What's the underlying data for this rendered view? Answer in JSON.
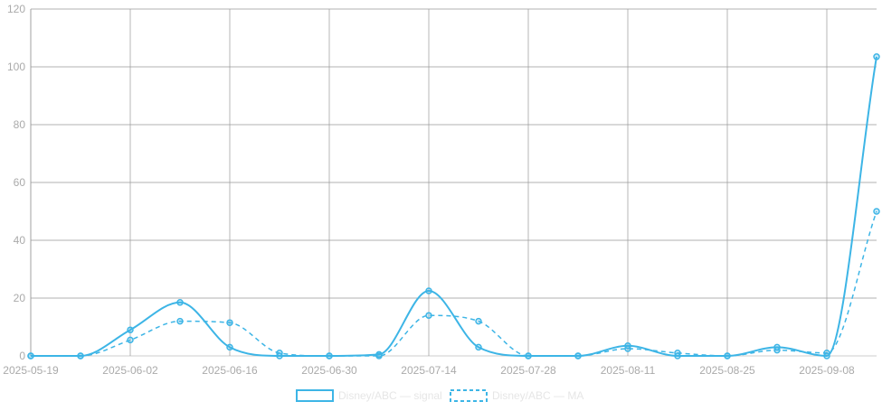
{
  "chart_data": {
    "type": "line",
    "x": [
      "2025-05-19",
      "2025-05-26",
      "2025-06-02",
      "2025-06-09",
      "2025-06-16",
      "2025-06-23",
      "2025-06-30",
      "2025-07-07",
      "2025-07-14",
      "2025-07-21",
      "2025-07-28",
      "2025-08-04",
      "2025-08-11",
      "2025-08-18",
      "2025-08-25",
      "2025-09-01",
      "2025-09-08",
      "2025-09-15"
    ],
    "x_tick_labels": [
      "2025-05-19",
      "2025-06-02",
      "2025-06-16",
      "2025-06-30",
      "2025-07-14",
      "2025-07-28",
      "2025-08-11",
      "2025-08-25",
      "2025-09-08"
    ],
    "ylim": [
      0,
      120
    ],
    "y_ticks": [
      0,
      20,
      40,
      60,
      80,
      100,
      120
    ],
    "grid": true,
    "legend_position": "bottom",
    "series": [
      {
        "name": "Disney/ABC — signal",
        "style": "solid",
        "color": "#3db5e6",
        "values": [
          0,
          0,
          9,
          18.5,
          3,
          0,
          0,
          0.5,
          22.5,
          3,
          0,
          0,
          3.5,
          0,
          0,
          3,
          0,
          103.5
        ]
      },
      {
        "name": "Disney/ABC — MA",
        "style": "dashed",
        "color": "#3db5e6",
        "values": [
          0,
          0,
          5.5,
          12,
          11.5,
          1,
          0,
          0,
          14,
          12,
          0,
          0,
          2.5,
          1,
          0,
          2,
          1,
          50
        ]
      }
    ]
  }
}
